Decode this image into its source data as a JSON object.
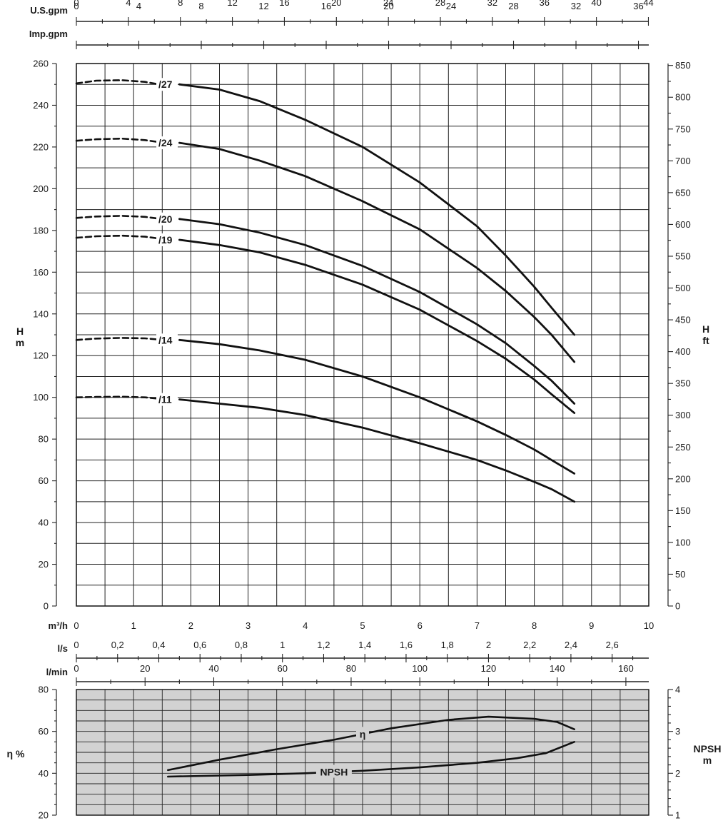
{
  "chart_data": [
    {
      "type": "line",
      "panel": "head",
      "x_unit": "m³/h",
      "xlim": [
        0,
        10
      ],
      "x_ticks": [
        "0",
        "1",
        "2",
        "3",
        "4",
        "5",
        "6",
        "7",
        "8",
        "9",
        "10"
      ],
      "ylim": [
        0,
        260
      ],
      "y_ticks": [
        "0",
        "20",
        "40",
        "60",
        "80",
        "100",
        "120",
        "140",
        "160",
        "180",
        "200",
        "220",
        "240",
        "260"
      ],
      "ylabel_lines": [
        "H",
        "m"
      ],
      "ylabel_right_lines": [
        "H",
        "ft"
      ],
      "y2_ticks_ft": [
        "0",
        "50",
        "100",
        "150",
        "200",
        "250",
        "300",
        "350",
        "400",
        "450",
        "500",
        "550",
        "600",
        "650",
        "700",
        "750",
        "800",
        "850"
      ],
      "grid": true,
      "secondary_x_axes": [
        {
          "label": "U.S.gpm",
          "ticks": [
            "0",
            "4",
            "8",
            "12",
            "16",
            "20",
            "24",
            "28",
            "32",
            "36",
            "40",
            "44"
          ],
          "factor": 4.4029
        },
        {
          "label": "Imp.gpm",
          "ticks": [
            "0",
            "4",
            "8",
            "12",
            "16",
            "20",
            "24",
            "28",
            "32",
            "36"
          ],
          "factor": 3.6662
        }
      ],
      "series": [
        {
          "name": "/27",
          "dashed": {
            "x": [
              0,
              0.35,
              0.8,
              1.2,
              1.4
            ],
            "y": [
              250.5,
              251.8,
              252.0,
              251.2,
              250.2
            ]
          },
          "solid": {
            "x": [
              1.8,
              2.5,
              3.2,
              4,
              5,
              6,
              7,
              7.5,
              8,
              8.3,
              8.7
            ],
            "y": [
              250,
              247.5,
              242,
              233,
              220,
              203,
              182,
              168,
              153,
              143,
              130
            ]
          }
        },
        {
          "name": "/24",
          "dashed": {
            "x": [
              0,
              0.35,
              0.8,
              1.2,
              1.4
            ],
            "y": [
              223,
              223.7,
              224,
              223.3,
              222.5
            ]
          },
          "solid": {
            "x": [
              1.8,
              2.5,
              3.2,
              4,
              5,
              6,
              7,
              7.5,
              8,
              8.3,
              8.7
            ],
            "y": [
              222,
              219,
              213.5,
              206,
              194,
              180.5,
              162,
              151,
              138.5,
              130,
              117
            ]
          }
        },
        {
          "name": "/20",
          "dashed": {
            "x": [
              0,
              0.35,
              0.8,
              1.2,
              1.4
            ],
            "y": [
              186,
              186.7,
              187,
              186.5,
              185.8
            ]
          },
          "solid": {
            "x": [
              1.8,
              2.5,
              3.2,
              4,
              5,
              6,
              7,
              7.5,
              8,
              8.3,
              8.7
            ],
            "y": [
              185.5,
              183,
              179,
              173,
              163,
              150.5,
              135,
              126,
              115,
              108,
              97
            ]
          }
        },
        {
          "name": "/19",
          "dashed": {
            "x": [
              0,
              0.35,
              0.8,
              1.2,
              1.4
            ],
            "y": [
              176.5,
              177.2,
              177.5,
              177,
              176.3
            ]
          },
          "solid": {
            "x": [
              1.8,
              2.5,
              3.2,
              4,
              5,
              6,
              7,
              7.5,
              8,
              8.3,
              8.7
            ],
            "y": [
              175.5,
              173,
              169.5,
              163.5,
              154,
              142,
              127,
              118.5,
              108.5,
              101.5,
              92.5
            ]
          }
        },
        {
          "name": "/14",
          "dashed": {
            "x": [
              0,
              0.35,
              0.8,
              1.2,
              1.4
            ],
            "y": [
              127.5,
              128.2,
              128.5,
              128.3,
              127.8
            ]
          },
          "solid": {
            "x": [
              1.8,
              2.5,
              3.2,
              4,
              5,
              6,
              7,
              7.5,
              8,
              8.3,
              8.7
            ],
            "y": [
              127.5,
              125.5,
              122.5,
              118,
              110,
              100,
              88.5,
              82,
              75,
              70,
              63.5
            ]
          }
        },
        {
          "name": "/11",
          "dashed": {
            "x": [
              0,
              0.35,
              0.8,
              1.2,
              1.4
            ],
            "y": [
              100,
              100.2,
              100.3,
              100,
              99.5
            ]
          },
          "solid": {
            "x": [
              1.8,
              2.5,
              3.2,
              4,
              5,
              6,
              7,
              7.5,
              8,
              8.3,
              8.7
            ],
            "y": [
              99,
              97,
              95,
              91.5,
              85.5,
              78,
              70,
              65,
              59.5,
              56,
              50
            ]
          }
        }
      ]
    },
    {
      "type": "line",
      "panel": "efficiency-npsh",
      "xlim": [
        0,
        10
      ],
      "ylim": [
        20,
        80
      ],
      "y_ticks": [
        "20",
        "40",
        "60",
        "80"
      ],
      "ylabel": "η %",
      "y2lim": [
        1,
        4
      ],
      "y2_ticks": [
        "1",
        "2",
        "3",
        "4"
      ],
      "ylabel_right_lines": [
        "NPSH",
        "m"
      ],
      "secondary_x_axes": [
        {
          "label": "l/s",
          "ticks": [
            "0",
            "0,2",
            "0,4",
            "0,6",
            "0,8",
            "1",
            "1,2",
            "1,4",
            "1,6",
            "1,8",
            "2",
            "2,2",
            "2,4",
            "2,6"
          ],
          "factor": 0.27778
        },
        {
          "label": "l/min",
          "ticks": [
            "0",
            "20",
            "40",
            "60",
            "80",
            "100",
            "120",
            "140",
            "160"
          ],
          "factor": 16.6667
        }
      ],
      "series": [
        {
          "name": "η",
          "axis": "left",
          "x": [
            1.6,
            2.5,
            3.5,
            4.5,
            5.5,
            6.5,
            7.2,
            8,
            8.4,
            8.7
          ],
          "y": [
            41.5,
            46.5,
            51.5,
            56,
            61.5,
            65.5,
            67,
            66,
            64.5,
            61
          ]
        },
        {
          "name": "NPSH",
          "axis": "right",
          "x": [
            1.6,
            3,
            4,
            5,
            6,
            7,
            7.7,
            8.2,
            8.7
          ],
          "y": [
            1.92,
            1.96,
            2.0,
            2.06,
            2.14,
            2.25,
            2.36,
            2.48,
            2.75
          ]
        }
      ]
    }
  ]
}
